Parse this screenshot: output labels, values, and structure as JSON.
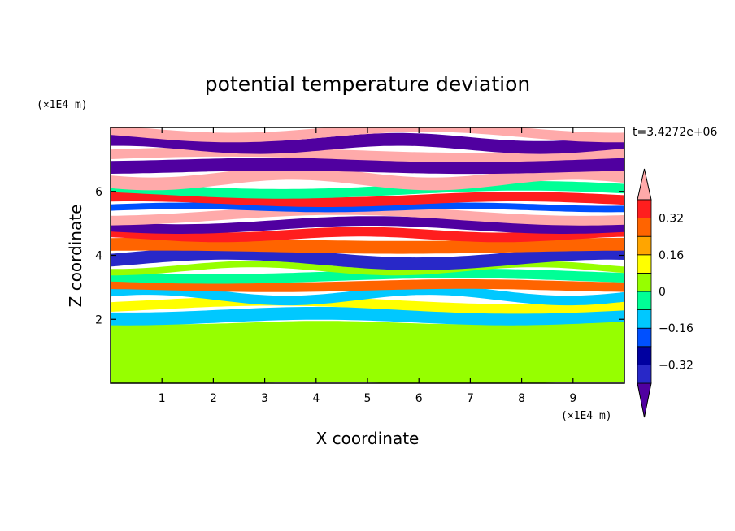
{
  "chart_data": {
    "type": "heatmap",
    "title": "potential temperature deviation",
    "xlabel": "X coordinate",
    "ylabel": "Z coordinate",
    "x_unit_label": "(×1E4 m)",
    "y_unit_label": "(×1E4 m)",
    "time_label": "t=3.4272e+06",
    "xlim": [
      0,
      10
    ],
    "ylim": [
      0,
      8
    ],
    "x_ticks": [
      "1",
      "2",
      "3",
      "4",
      "5",
      "6",
      "7",
      "8",
      "9"
    ],
    "y_ticks": [
      "2",
      "4",
      "6"
    ],
    "colorbar": {
      "tick_labels": [
        "0.32",
        "0.16",
        "0",
        "−0.16",
        "−0.32"
      ],
      "tick_values": [
        0.32,
        0.16,
        0,
        -0.16,
        -0.32
      ],
      "levels": [
        -0.4,
        -0.32,
        -0.24,
        -0.16,
        -0.08,
        0,
        0.08,
        0.16,
        0.24,
        0.32,
        0.4
      ],
      "colors": [
        "#5000a0",
        "#2828c8",
        "#0000a0",
        "#0050ff",
        "#00c8ff",
        "#00ff96",
        "#96ff00",
        "#ffff00",
        "#ffa500",
        "#ff6400",
        "#ff1e1e",
        "#ffaaaa"
      ],
      "extend": "both"
    },
    "field_layers": [
      {
        "z_range": [
          0.0,
          1.9
        ],
        "level": 0.04
      },
      {
        "z_range": [
          1.9,
          2.3
        ],
        "level": -0.12
      },
      {
        "z_range": [
          2.3,
          2.6
        ],
        "level": 0.12
      },
      {
        "z_range": [
          2.6,
          2.9
        ],
        "level": -0.12
      },
      {
        "z_range": [
          2.9,
          3.2
        ],
        "level": 0.28
      },
      {
        "z_range": [
          3.2,
          3.5
        ],
        "level": -0.04
      },
      {
        "z_range": [
          3.5,
          3.7
        ],
        "level": 0.04
      },
      {
        "z_range": [
          3.7,
          4.1
        ],
        "level": -0.36
      },
      {
        "z_range": [
          4.1,
          4.5
        ],
        "level": 0.24
      },
      {
        "z_range": [
          4.5,
          4.8
        ],
        "level": 0.36
      },
      {
        "z_range": [
          4.8,
          5.1
        ],
        "level": -0.44
      },
      {
        "z_range": [
          5.1,
          5.4
        ],
        "level": 0.44
      },
      {
        "z_range": [
          5.4,
          5.6
        ],
        "level": -0.2
      },
      {
        "z_range": [
          5.6,
          5.9
        ],
        "level": 0.32
      },
      {
        "z_range": [
          5.9,
          6.2
        ],
        "level": -0.04
      },
      {
        "z_range": [
          6.2,
          6.6
        ],
        "level": 0.44
      },
      {
        "z_range": [
          6.6,
          7.0
        ],
        "level": -0.44
      },
      {
        "z_range": [
          7.0,
          7.3
        ],
        "level": 0.44
      },
      {
        "z_range": [
          7.3,
          7.7
        ],
        "level": -0.44
      },
      {
        "z_range": [
          7.7,
          8.0
        ],
        "level": 0.44
      }
    ]
  }
}
